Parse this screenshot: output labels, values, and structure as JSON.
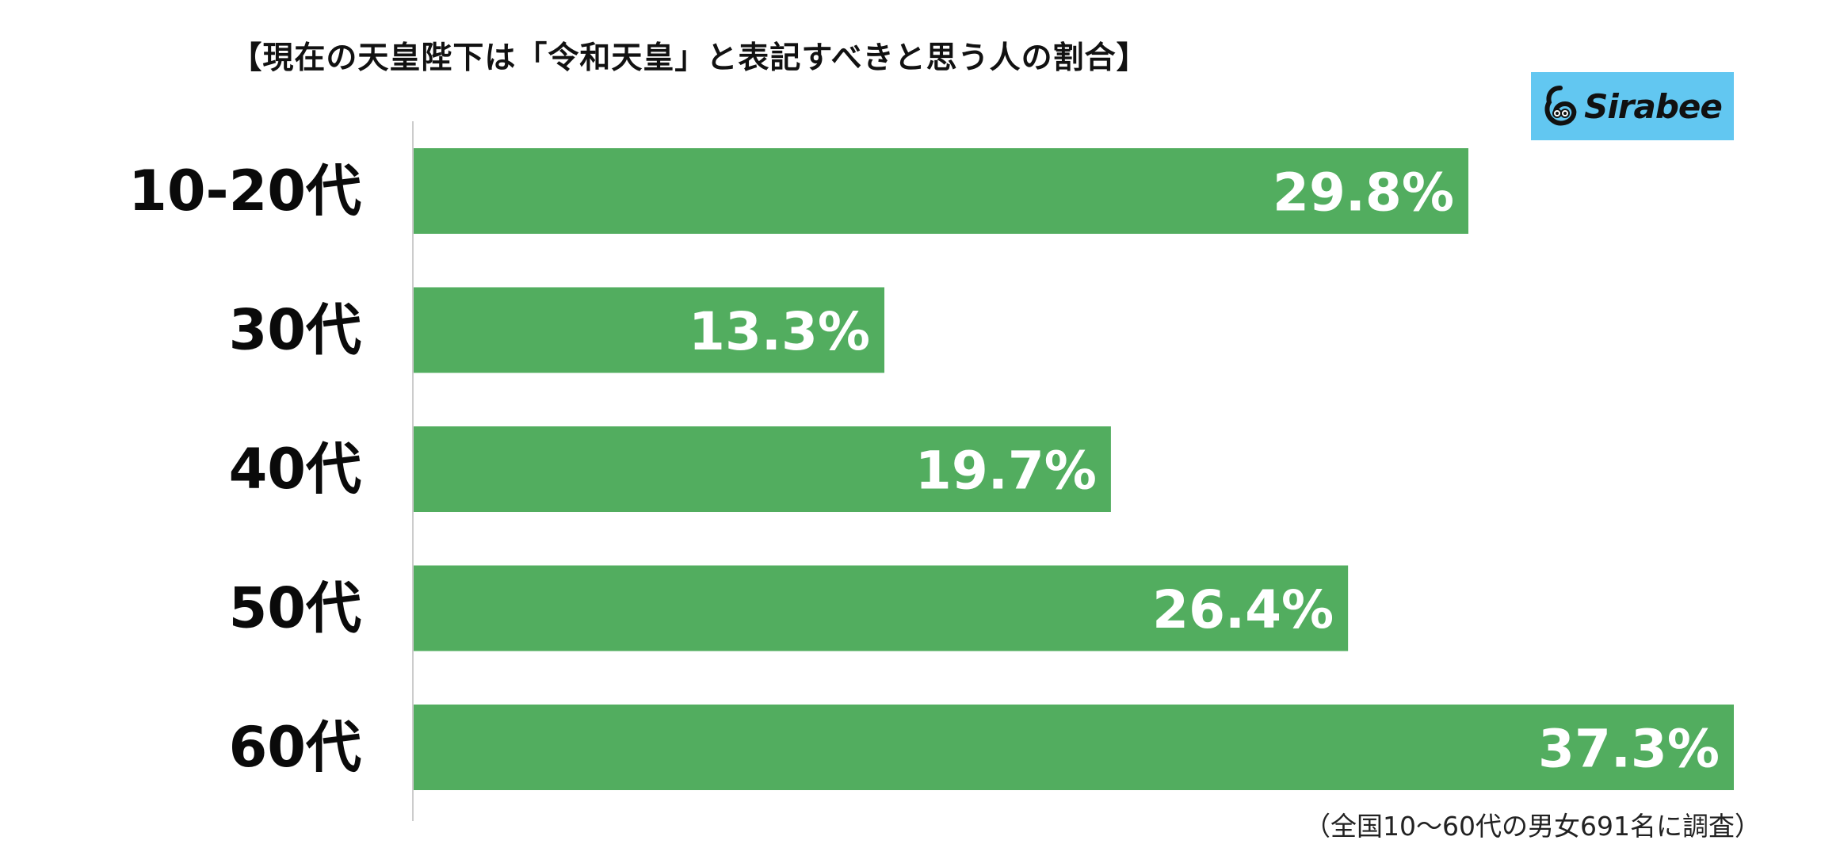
{
  "title": "【現在の天皇陛下は「令和天皇」と表記すべきと思う人の割合】",
  "logo": {
    "text": "Sirabee",
    "icon": "sirabee-mascot-icon",
    "background": "#62c7f1"
  },
  "footnote": "（全国10〜60代の男女691名に調査）",
  "colors": {
    "bar": "#52ad5f",
    "axis": "#cccccc",
    "value_text": "#ffffff",
    "category_text": "#0a0a0a"
  },
  "chart_data": {
    "type": "bar",
    "orientation": "horizontal",
    "title": "【現在の天皇陛下は「令和天皇」と表記すべきと思う人の割合】",
    "categories": [
      "10-20代",
      "30代",
      "40代",
      "50代",
      "60代"
    ],
    "values": [
      29.8,
      13.3,
      19.7,
      26.4,
      37.3
    ],
    "value_labels": [
      "29.8%",
      "13.3%",
      "19.7%",
      "26.4%",
      "37.3%"
    ],
    "unit": "%",
    "xlim": [
      0,
      37.3
    ],
    "grid": false,
    "legend": "none"
  }
}
